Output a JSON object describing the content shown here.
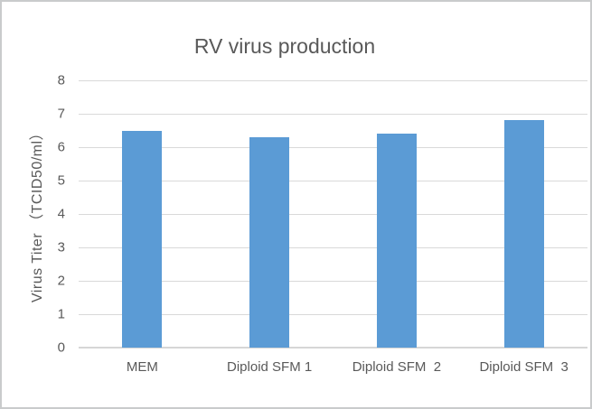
{
  "chart_data": {
    "type": "bar",
    "title": "RV virus production",
    "categories": [
      "MEM",
      "Diploid SFM 1",
      "Diploid SFM  2",
      "Diploid SFM  3"
    ],
    "values": [
      6.5,
      6.3,
      6.4,
      6.8
    ],
    "xlabel": "",
    "ylabel": "Virus Titer （TCID50/ml）",
    "ylim": [
      0,
      8
    ],
    "ytick_step": 1,
    "yticks": [
      0,
      1,
      2,
      3,
      4,
      5,
      6,
      7,
      8
    ],
    "grid": true,
    "legend": "none",
    "colors": {
      "bar": "#5B9BD5",
      "gridline": "#D9D9D9",
      "axis_line": "#D6D6D6",
      "text": "#595959",
      "background": "#FFFFFF",
      "frame_border": "#C9CBCC"
    }
  }
}
